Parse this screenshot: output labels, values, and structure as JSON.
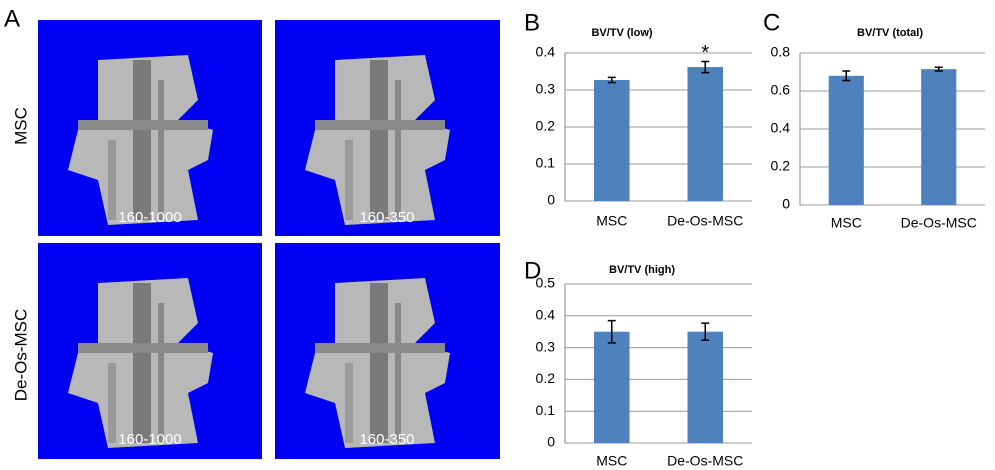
{
  "panels": {
    "label": "A",
    "rows": [
      "MSC",
      "De-Os-MSC"
    ],
    "images": [
      [
        "160-1000",
        "160-350"
      ],
      [
        "160-1000",
        "160-350"
      ]
    ]
  },
  "chart_data": [
    {
      "type": "bar",
      "panel_label": "B",
      "title": "BV/TV (low)",
      "categories": [
        "MSC",
        "De-Os-MSC"
      ],
      "series": [
        {
          "color": "#4f81bd",
          "values": [
            0.327,
            0.362
          ],
          "errors": [
            0.007,
            0.015
          ]
        }
      ],
      "annotation": "*",
      "ylim": [
        0,
        0.4
      ],
      "yticks": [
        0,
        0.1,
        0.2,
        0.3,
        0.4
      ],
      "grid": true
    },
    {
      "type": "bar",
      "panel_label": "C",
      "title": "BV/TV (total)",
      "categories": [
        "MSC",
        "De-Os-MSC"
      ],
      "series": [
        {
          "color": "#4f81bd",
          "values": [
            0.68,
            0.715
          ],
          "errors": [
            0.025,
            0.01
          ]
        }
      ],
      "ylim": [
        0,
        0.8
      ],
      "yticks": [
        0,
        0.2,
        0.4,
        0.6,
        0.8
      ],
      "grid": true
    },
    {
      "type": "bar",
      "panel_label": "D",
      "title": "BV/TV (high)",
      "categories": [
        "MSC",
        "De-Os-MSC"
      ],
      "series": [
        {
          "color": "#4f81bd",
          "values": [
            0.35,
            0.35
          ],
          "errors": [
            0.035,
            0.027
          ]
        }
      ],
      "ylim": [
        0,
        0.5
      ],
      "yticks": [
        0,
        0.1,
        0.2,
        0.3,
        0.4,
        0.5
      ],
      "grid": true
    }
  ]
}
